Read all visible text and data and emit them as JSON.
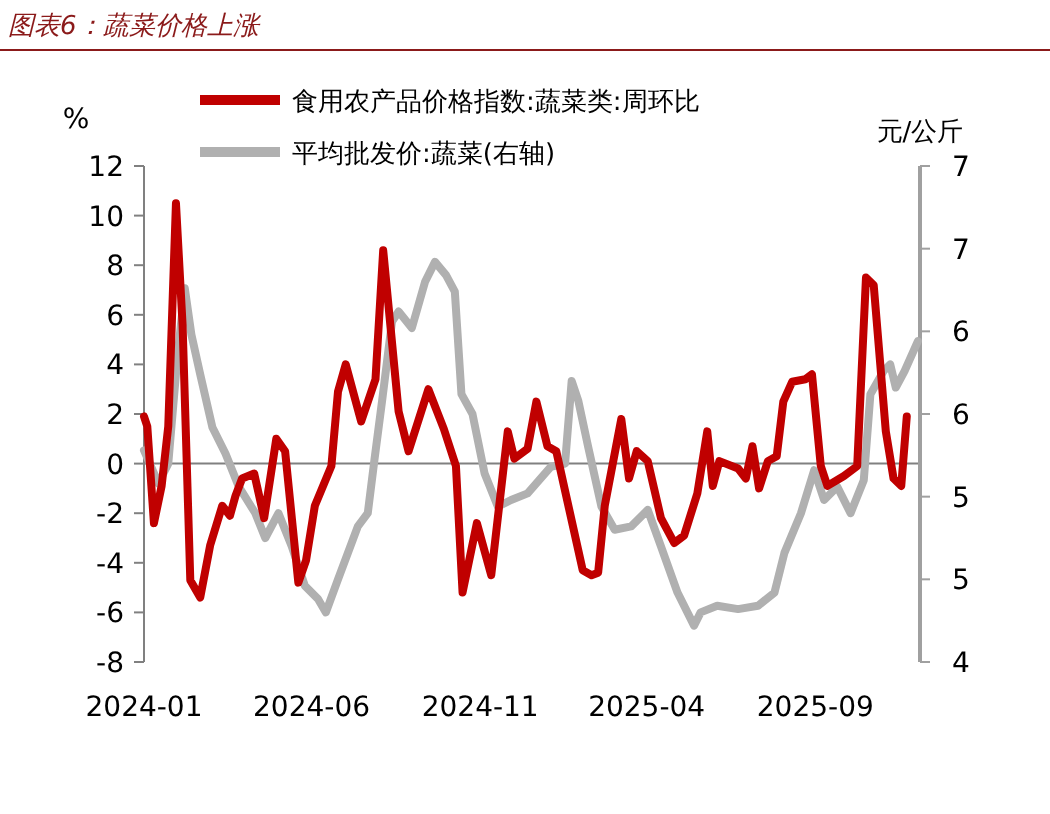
{
  "chart_data": {
    "type": "line",
    "title": "图表6：蔬菜价格上涨",
    "ylabel": "%",
    "y2label": "元/公斤",
    "legend": "top",
    "xlim": [
      "2024-01-01",
      "2025-12-05"
    ],
    "xticks": [
      "2024-01",
      "2024-06",
      "2024-11",
      "2025-04",
      "2025-09"
    ],
    "ylim": [
      -8,
      12
    ],
    "yticks": [
      -8,
      -6,
      -4,
      -2,
      0,
      2,
      4,
      6,
      8,
      10,
      12
    ],
    "y2lim": [
      4,
      7
    ],
    "y2ticks": [
      4,
      {
        "value": 4.5,
        "label": "5"
      },
      5,
      {
        "value": 5.5,
        "label": "6"
      },
      6,
      {
        "value": 6.5,
        "label": "7"
      },
      7
    ],
    "ref_lines": [
      {
        "axis": "y",
        "value": 0,
        "color": "#808080"
      }
    ],
    "series": [
      {
        "name": "食用农产品价格指数:蔬菜类:周环比",
        "color": "#c00000",
        "x": [
          "2024-01-01",
          "2024-01-04",
          "2024-01-10",
          "2024-01-17",
          "2024-01-23",
          "2024-01-30",
          "2024-02-05",
          "2024-02-12",
          "2024-02-21",
          "2024-03-01",
          "2024-03-12",
          "2024-03-19",
          "2024-03-24",
          "2024-03-30",
          "2024-04-10",
          "2024-04-19",
          "2024-04-30",
          "2024-05-08",
          "2024-05-20",
          "2024-05-27",
          "2024-06-04",
          "2024-06-19",
          "2024-06-25",
          "2024-07-02",
          "2024-07-16",
          "2024-07-29",
          "2024-08-05",
          "2024-08-19",
          "2024-08-28",
          "2024-09-15",
          "2024-09-29",
          "2024-10-10",
          "2024-10-16",
          "2024-10-29",
          "2024-11-11",
          "2024-11-26",
          "2024-12-02",
          "2024-12-14",
          "2024-12-22",
          "2025-01-01",
          "2025-01-09",
          "2025-02-02",
          "2025-02-10",
          "2025-02-16",
          "2025-02-22",
          "2025-03-09",
          "2025-03-16",
          "2025-03-23",
          "2025-04-02",
          "2025-04-14",
          "2025-04-26",
          "2025-05-05",
          "2025-05-17",
          "2025-05-26",
          "2025-05-31",
          "2025-06-06",
          "2025-06-23",
          "2025-06-30",
          "2025-07-06",
          "2025-07-12",
          "2025-07-20",
          "2025-07-28",
          "2025-08-03",
          "2025-08-11",
          "2025-08-23",
          "2025-08-29",
          "2025-09-06",
          "2025-09-12",
          "2025-09-27",
          "2025-10-09",
          "2025-10-17",
          "2025-10-24",
          "2025-11-04",
          "2025-11-11",
          "2025-11-18",
          "2025-11-23"
        ],
        "values": [
          1.9,
          1.5,
          -2.4,
          -0.9,
          1.5,
          10.5,
          5.6,
          -4.7,
          -5.4,
          -3.3,
          -1.7,
          -2.1,
          -1.3,
          -0.6,
          -0.4,
          -2.2,
          1.0,
          0.5,
          -4.8,
          -3.9,
          -1.7,
          -0.1,
          2.9,
          4.0,
          1.7,
          3.4,
          8.6,
          2.1,
          0.5,
          3.0,
          1.4,
          -0.1,
          -5.2,
          -2.4,
          -4.5,
          1.3,
          0.2,
          0.6,
          2.5,
          0.7,
          0.5,
          -4.3,
          -4.5,
          -4.4,
          -1.7,
          1.8,
          -0.6,
          0.5,
          0.1,
          -2.2,
          -3.2,
          -2.9,
          -1.2,
          1.3,
          -0.9,
          0.1,
          -0.2,
          -0.6,
          0.7,
          -1.0,
          0.1,
          0.3,
          2.5,
          3.3,
          3.4,
          3.6,
          -0.1,
          -0.9,
          -0.5,
          -0.1,
          7.5,
          7.2,
          1.3,
          -0.6,
          -0.9,
          1.9
        ]
      },
      {
        "name": "平均批发价:蔬菜(右轴)",
        "color": "#b0b0b0",
        "axis": "y2",
        "x": [
          "2024-01-01",
          "2024-01-05",
          "2024-01-14",
          "2024-01-23",
          "2024-01-31",
          "2024-02-07",
          "2024-02-13",
          "2024-02-21",
          "2024-03-03",
          "2024-03-15",
          "2024-03-27",
          "2024-04-11",
          "2024-04-20",
          "2024-05-02",
          "2024-05-14",
          "2024-05-26",
          "2024-06-07",
          "2024-06-14",
          "2024-06-25",
          "2024-07-13",
          "2024-07-22",
          "2024-07-28",
          "2024-08-04",
          "2024-08-13",
          "2024-08-19",
          "2024-08-31",
          "2024-09-12",
          "2024-09-21",
          "2024-10-01",
          "2024-10-09",
          "2024-10-15",
          "2024-10-25",
          "2024-11-05",
          "2024-11-17",
          "2024-11-29",
          "2024-12-14",
          "2025-01-04",
          "2025-01-17",
          "2025-01-23",
          "2025-01-29",
          "2025-02-07",
          "2025-02-19",
          "2025-03-03",
          "2025-03-18",
          "2025-04-02",
          "2025-04-14",
          "2025-04-29",
          "2025-05-14",
          "2025-05-20",
          "2025-06-04",
          "2025-06-23",
          "2025-07-11",
          "2025-07-26",
          "2025-08-04",
          "2025-08-19",
          "2025-08-31",
          "2025-09-09",
          "2025-09-21",
          "2025-10-03",
          "2025-10-15",
          "2025-10-21",
          "2025-11-02",
          "2025-11-08",
          "2025-11-13",
          "2025-11-21",
          "2025-12-03"
        ],
        "values": [
          5.28,
          5.22,
          5.08,
          5.2,
          5.82,
          6.26,
          5.98,
          5.74,
          5.42,
          5.26,
          5.06,
          4.9,
          4.75,
          4.9,
          4.7,
          4.46,
          4.38,
          4.3,
          4.5,
          4.82,
          4.9,
          5.22,
          5.58,
          6.06,
          6.12,
          6.02,
          6.3,
          6.42,
          6.34,
          6.24,
          5.62,
          5.5,
          5.14,
          4.94,
          4.98,
          5.02,
          5.18,
          5.2,
          5.7,
          5.58,
          5.3,
          4.94,
          4.8,
          4.82,
          4.92,
          4.7,
          4.42,
          4.22,
          4.3,
          4.34,
          4.32,
          4.34,
          4.42,
          4.66,
          4.9,
          5.16,
          4.98,
          5.06,
          4.9,
          5.1,
          5.62,
          5.76,
          5.8,
          5.66,
          5.76,
          5.94
        ]
      }
    ]
  }
}
